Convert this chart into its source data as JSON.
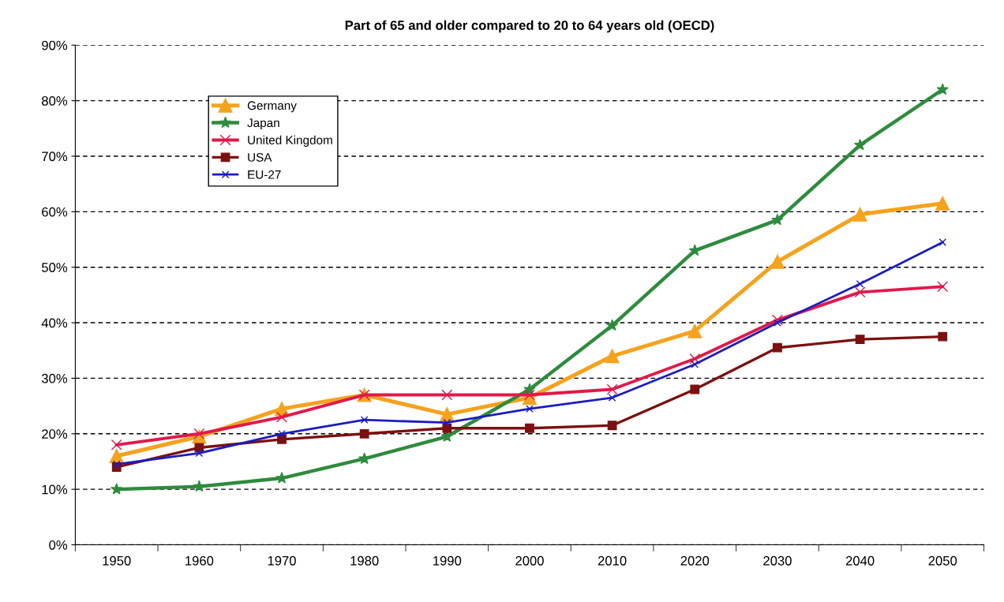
{
  "chart_data": {
    "type": "line",
    "title": "Part of 65 and older compared to 20 to 64 years old (OECD)",
    "categories": [
      "1950",
      "1960",
      "1970",
      "1980",
      "1990",
      "2000",
      "2010",
      "2020",
      "2030",
      "2040",
      "2050"
    ],
    "series": [
      {
        "name": "Germany",
        "color": "#f5a21e",
        "marker": "triangle",
        "values": [
          16,
          19.5,
          24.5,
          27,
          23.5,
          26.5,
          34,
          38.5,
          51,
          59.5,
          61.5
        ]
      },
      {
        "name": "Japan",
        "color": "#2e8b3e",
        "marker": "star",
        "values": [
          10,
          10.5,
          12,
          15.5,
          19.5,
          28,
          39.5,
          53,
          58.5,
          72,
          82
        ]
      },
      {
        "name": "United Kingdom",
        "color": "#e0194a",
        "marker": "cross",
        "values": [
          18,
          20,
          23,
          27,
          27,
          27,
          28,
          33.5,
          40.5,
          45.5,
          46.5
        ]
      },
      {
        "name": "USA",
        "color": "#7b1010",
        "marker": "square",
        "values": [
          14,
          17.5,
          19,
          20,
          21,
          21,
          21.5,
          28,
          35.5,
          37,
          37.5
        ]
      },
      {
        "name": "EU-27",
        "color": "#1c1cc0",
        "marker": "cross",
        "values": [
          14.5,
          16.5,
          20,
          22.5,
          22,
          24.5,
          26.5,
          32.5,
          40,
          47,
          54.5
        ]
      }
    ],
    "ylim": [
      0,
      90
    ],
    "yticks": [
      {
        "value": 0,
        "label": "0%"
      },
      {
        "value": 10,
        "label": "10%"
      },
      {
        "value": 20,
        "label": "20%"
      },
      {
        "value": 30,
        "label": "30%"
      },
      {
        "value": 40,
        "label": "40%"
      },
      {
        "value": 50,
        "label": "50%"
      },
      {
        "value": 60,
        "label": "60%"
      },
      {
        "value": 70,
        "label": "70%"
      },
      {
        "value": 80,
        "label": "80%"
      },
      {
        "value": 90,
        "label": "90%"
      }
    ],
    "grid": "y",
    "legend": "top left",
    "line_style": "solid"
  }
}
